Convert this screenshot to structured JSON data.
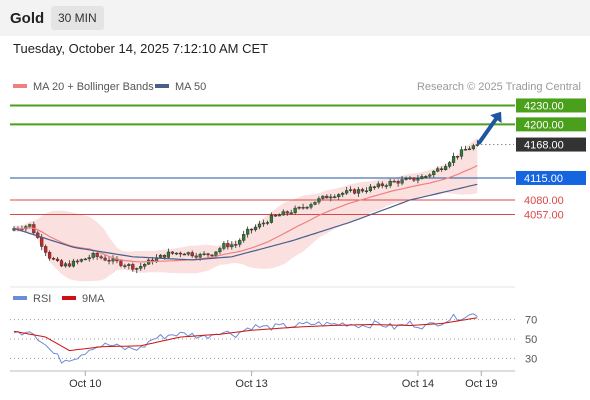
{
  "header": {
    "title": "Gold",
    "timeframe": "30 MIN"
  },
  "date_line": "Tuesday, October 14, 2025 7:12:10 AM CET",
  "credit": "Research © 2025 Trading Central",
  "colors": {
    "candle_up": "#2e7d32",
    "candle_down": "#c62828",
    "bands": "#fbe0e0",
    "ma20": "#f08080",
    "ma50": "#4a5e8c",
    "resistance": "#4aa01a",
    "pivot": "#1e56a0",
    "support": "#d94848",
    "current": "#333333",
    "rsi": "#6b8cd6",
    "rsi_ma": "#d01010",
    "arrow": "#1e56a0"
  },
  "chart_data": [
    {
      "type": "candlestick",
      "title": "",
      "legend": [
        {
          "label": "MA 20 + Bollinger Bands",
          "color": "#f08080"
        },
        {
          "label": "MA 50",
          "color": "#4a5e8c"
        }
      ],
      "legend_position": "top-left",
      "ylim": [
        3950,
        4245
      ],
      "x_ticks": [
        "Oct 10",
        "Oct 13",
        "Oct 14",
        "Oct 19"
      ],
      "levels": [
        {
          "label": "4230.00",
          "value": 4230,
          "kind": "resistance"
        },
        {
          "label": "4200.00",
          "value": 4200,
          "kind": "resistance"
        },
        {
          "label": "4168.00",
          "value": 4168,
          "kind": "current"
        },
        {
          "label": "4115.00",
          "value": 4115,
          "kind": "pivot"
        },
        {
          "label": "4080.00",
          "value": 4080,
          "kind": "support"
        },
        {
          "label": "4057.00",
          "value": 4057,
          "kind": "support"
        }
      ],
      "close_anchors": [
        [
          0,
          4035
        ],
        [
          4,
          4040
        ],
        [
          7,
          4010
        ],
        [
          9,
          3990
        ],
        [
          12,
          3975
        ],
        [
          16,
          3982
        ],
        [
          20,
          3992
        ],
        [
          24,
          3985
        ],
        [
          28,
          3978
        ],
        [
          31,
          3972
        ],
        [
          35,
          3985
        ],
        [
          39,
          3995
        ],
        [
          43,
          3997
        ],
        [
          47,
          3992
        ],
        [
          50,
          3995
        ],
        [
          53,
          4008
        ],
        [
          56,
          4010
        ],
        [
          59,
          4030
        ],
        [
          62,
          4040
        ],
        [
          65,
          4052
        ],
        [
          68,
          4058
        ],
        [
          72,
          4066
        ],
        [
          76,
          4078
        ],
        [
          80,
          4088
        ],
        [
          84,
          4092
        ],
        [
          88,
          4096
        ],
        [
          91,
          4100
        ],
        [
          95,
          4108
        ],
        [
          100,
          4112
        ],
        [
          104,
          4118
        ],
        [
          108,
          4132
        ],
        [
          111,
          4148
        ],
        [
          114,
          4160
        ],
        [
          117,
          4168
        ]
      ],
      "ma50_anchors": [
        [
          0,
          4035
        ],
        [
          15,
          4005
        ],
        [
          30,
          3990
        ],
        [
          45,
          3985
        ],
        [
          55,
          3990
        ],
        [
          70,
          4015
        ],
        [
          85,
          4045
        ],
        [
          100,
          4080
        ],
        [
          117,
          4105
        ]
      ],
      "forecast_arrow": {
        "from": [
          117,
          4168
        ],
        "to": [
          123,
          4220
        ]
      },
      "x_tick_positions": [
        18,
        60,
        102,
        118
      ]
    },
    {
      "type": "line",
      "title": "",
      "legend": [
        {
          "label": "RSI",
          "color": "#6b8cd6"
        },
        {
          "label": "9MA",
          "color": "#d01010"
        }
      ],
      "legend_position": "top-left",
      "ylim": [
        20,
        80
      ],
      "y_ticks": [
        70,
        50,
        30
      ],
      "dotted_levels": [
        70,
        50,
        30
      ],
      "rsi_anchors": [
        [
          0,
          55
        ],
        [
          4,
          60
        ],
        [
          7,
          48
        ],
        [
          10,
          35
        ],
        [
          12,
          28
        ],
        [
          16,
          32
        ],
        [
          20,
          42
        ],
        [
          24,
          44
        ],
        [
          28,
          40
        ],
        [
          32,
          40
        ],
        [
          35,
          50
        ],
        [
          40,
          55
        ],
        [
          44,
          55
        ],
        [
          48,
          52
        ],
        [
          52,
          58
        ],
        [
          56,
          55
        ],
        [
          60,
          63
        ],
        [
          64,
          62
        ],
        [
          68,
          63
        ],
        [
          72,
          64
        ],
        [
          76,
          66
        ],
        [
          80,
          65
        ],
        [
          84,
          66
        ],
        [
          88,
          64
        ],
        [
          92,
          66
        ],
        [
          96,
          62
        ],
        [
          100,
          66
        ],
        [
          104,
          63
        ],
        [
          108,
          68
        ],
        [
          111,
          72
        ],
        [
          114,
          74
        ],
        [
          117,
          76
        ]
      ],
      "ma_anchors": [
        [
          0,
          58
        ],
        [
          8,
          52
        ],
        [
          14,
          38
        ],
        [
          22,
          42
        ],
        [
          32,
          43
        ],
        [
          42,
          52
        ],
        [
          52,
          55
        ],
        [
          60,
          59
        ],
        [
          70,
          62
        ],
        [
          80,
          64
        ],
        [
          90,
          65
        ],
        [
          100,
          64
        ],
        [
          108,
          66
        ],
        [
          117,
          72
        ]
      ]
    }
  ]
}
